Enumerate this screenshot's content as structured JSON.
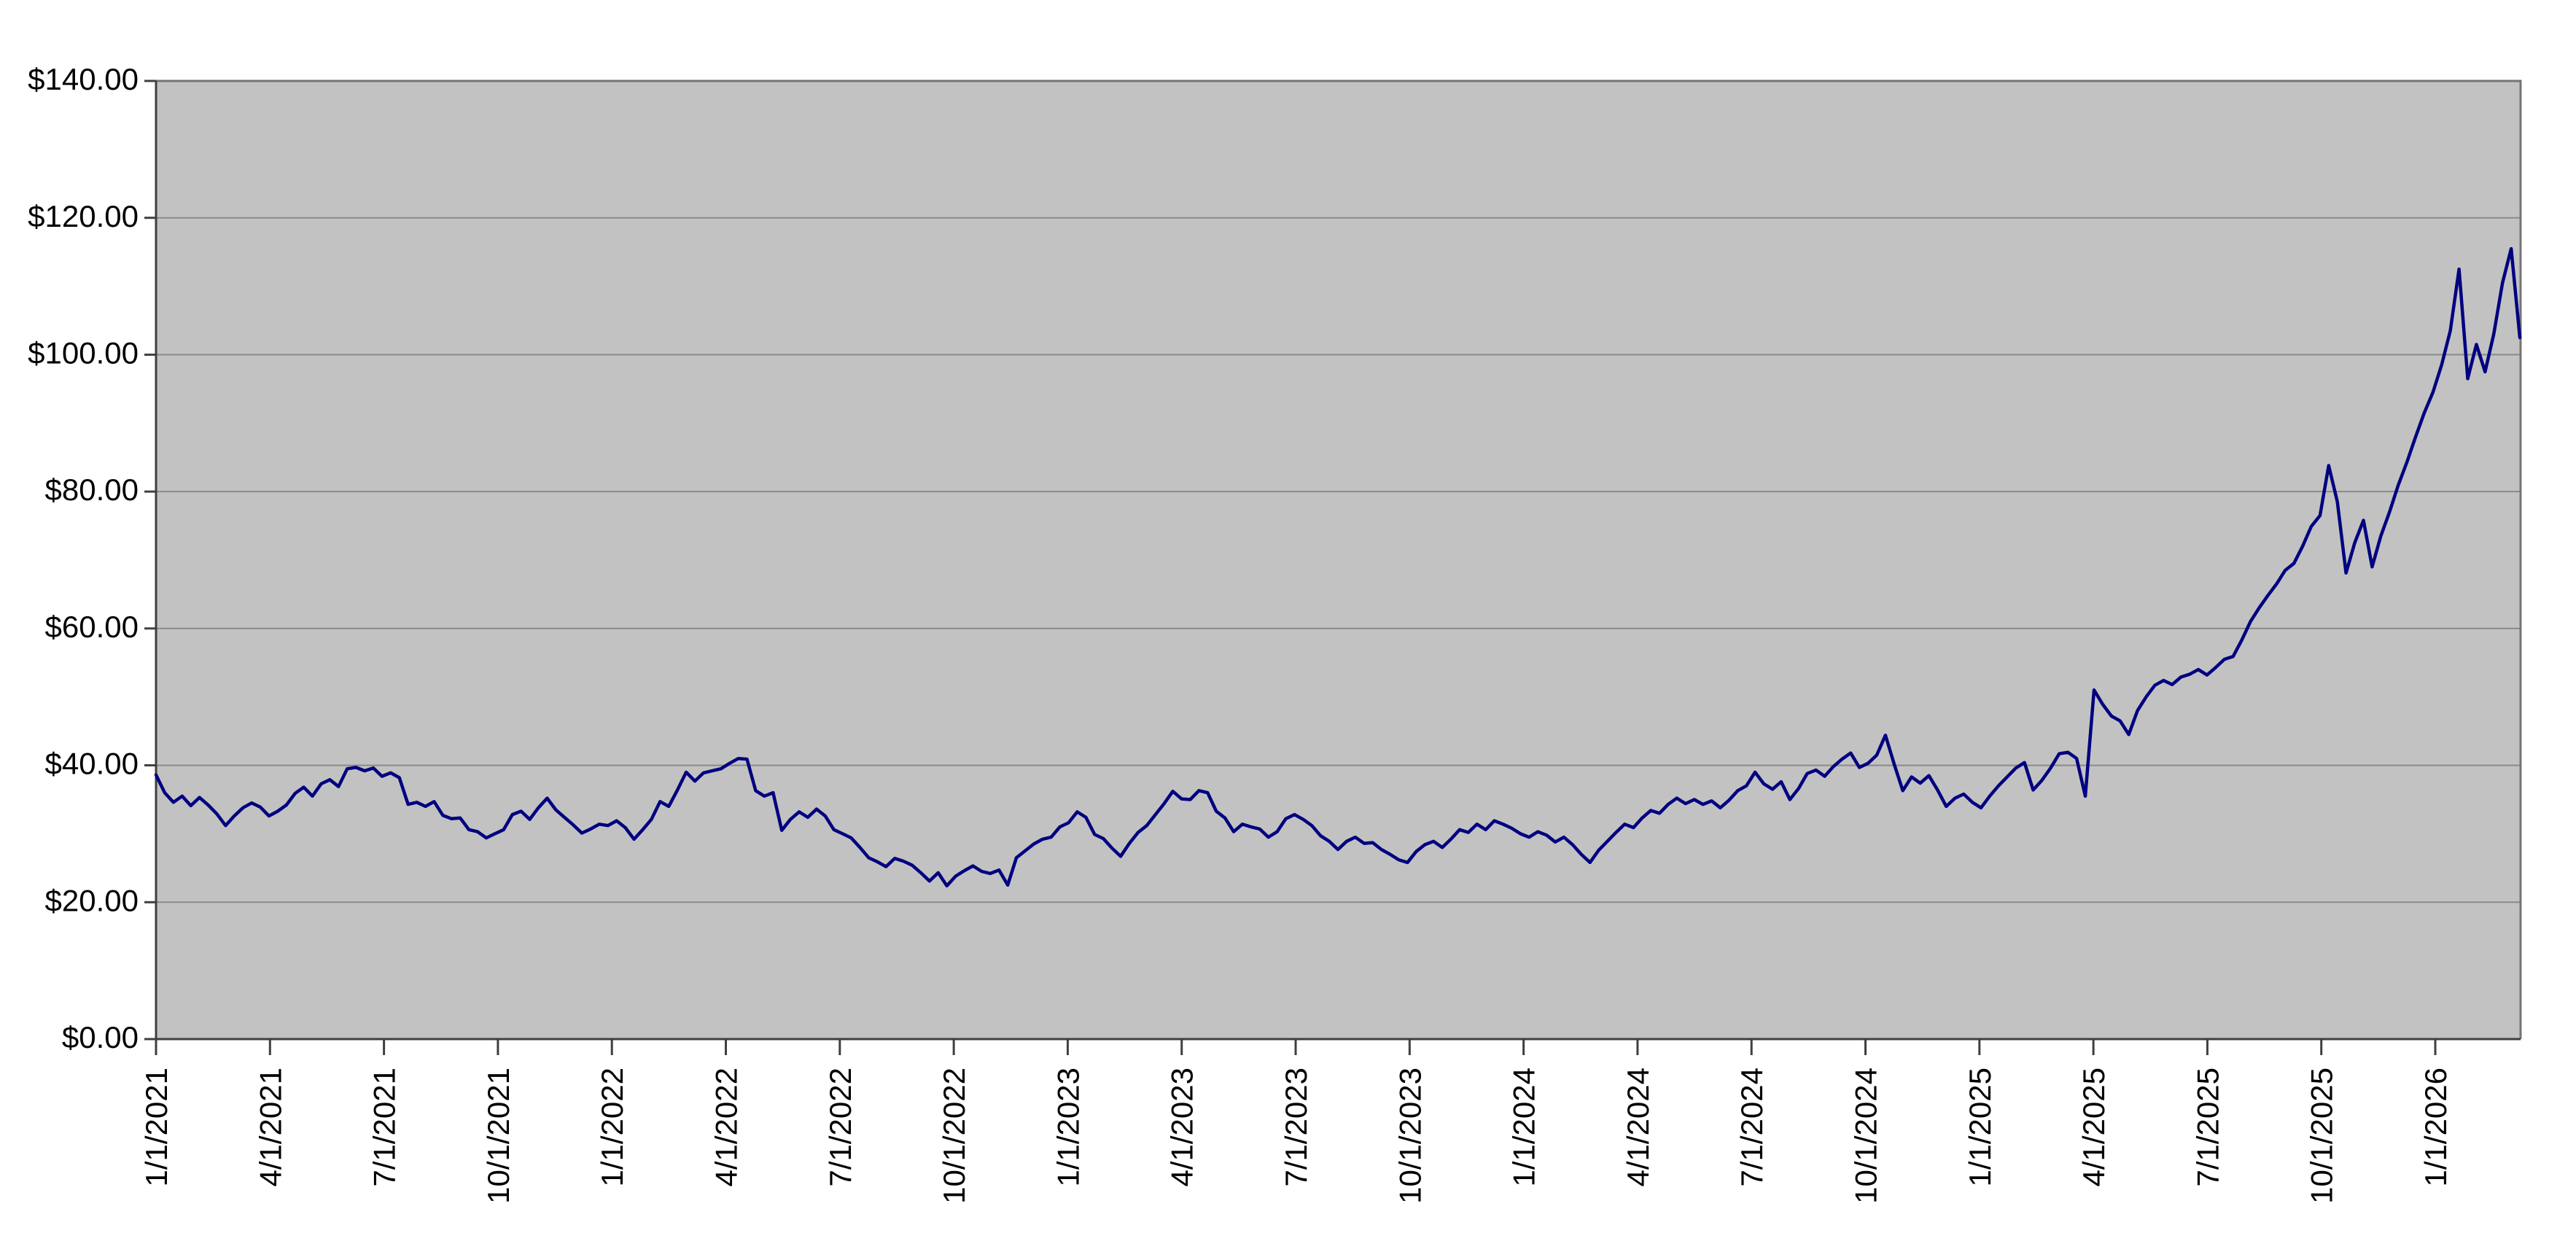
{
  "chart_data": {
    "type": "line",
    "title": "",
    "legend": "none",
    "grid": "horizontal-only",
    "plot_background": "#c2c2c2",
    "outer_background": "#ffffff",
    "gridline_color": "#8a8a8a",
    "frame_color": "#747474",
    "axis_color": "#3f3f3f",
    "tick_color": "#3f3f3f",
    "label_color": "#000000",
    "y_axis": {
      "min": 0,
      "max": 140,
      "tick_step": 20,
      "format": "currency",
      "tick_labels": [
        "$0.00",
        "$20.00",
        "$40.00",
        "$60.00",
        "$80.00",
        "$100.00",
        "$120.00",
        "$140.00"
      ]
    },
    "x_axis": {
      "start_date": "1/1/2021",
      "end_date": "3/19/2026",
      "tick_interval": "quarterly",
      "tick_labels": [
        "1/1/2021",
        "4/1/2021",
        "7/1/2021",
        "10/1/2021",
        "1/1/2022",
        "4/1/2022",
        "7/1/2022",
        "10/1/2022",
        "1/1/2023",
        "4/1/2023",
        "7/1/2023",
        "10/1/2023",
        "1/1/2024",
        "4/1/2024",
        "7/1/2024",
        "10/1/2024",
        "1/1/2025",
        "4/1/2025",
        "7/1/2025",
        "10/1/2025",
        "1/1/2026"
      ],
      "label_rotation_deg": -90
    },
    "series": [
      {
        "name": "price",
        "color": "#000080",
        "stroke_width": 4.5,
        "interval_days": 7,
        "values": [
          38.6,
          36.0,
          34.6,
          35.5,
          34.1,
          35.3,
          34.2,
          32.9,
          31.2,
          32.6,
          33.8,
          34.5,
          33.9,
          32.6,
          33.3,
          34.2,
          35.9,
          36.8,
          35.5,
          37.3,
          37.9,
          36.9,
          39.5,
          39.7,
          39.2,
          39.6,
          38.4,
          38.9,
          38.2,
          34.3,
          34.6,
          34.0,
          34.7,
          32.7,
          32.2,
          32.3,
          30.6,
          30.3,
          29.4,
          30.0,
          30.6,
          32.8,
          33.3,
          32.1,
          33.8,
          35.2,
          33.5,
          32.4,
          31.3,
          30.1,
          30.7,
          31.4,
          31.2,
          31.9,
          30.9,
          29.2,
          30.6,
          32.1,
          34.7,
          34.0,
          36.4,
          39.0,
          37.7,
          38.9,
          39.2,
          39.5,
          40.3,
          41.0,
          40.9,
          36.3,
          35.5,
          36.0,
          30.5,
          32.1,
          33.2,
          32.4,
          33.6,
          32.6,
          30.6,
          30.0,
          29.4,
          28.0,
          26.5,
          25.9,
          25.2,
          26.4,
          26.0,
          25.4,
          24.3,
          23.1,
          24.3,
          22.4,
          23.8,
          24.6,
          25.3,
          24.5,
          24.2,
          24.7,
          22.5,
          26.5,
          27.5,
          28.5,
          29.2,
          29.5,
          31.0,
          31.6,
          33.2,
          32.4,
          29.9,
          29.3,
          27.9,
          26.7,
          28.6,
          30.2,
          31.2,
          32.8,
          34.4,
          36.2,
          35.1,
          35.0,
          36.3,
          36.0,
          33.3,
          32.3,
          30.3,
          31.4,
          31.0,
          30.7,
          29.5,
          30.3,
          32.2,
          32.8,
          32.1,
          31.2,
          29.7,
          28.9,
          27.7,
          28.9,
          29.5,
          28.6,
          28.7,
          27.7,
          27.0,
          26.2,
          25.8,
          27.4,
          28.4,
          28.9,
          28.0,
          29.2,
          30.6,
          30.2,
          31.4,
          30.6,
          31.9,
          31.4,
          30.8,
          30.0,
          29.5,
          30.3,
          29.8,
          28.8,
          29.5,
          28.4,
          27.0,
          25.8,
          27.6,
          28.9,
          30.2,
          31.4,
          30.9,
          32.3,
          33.4,
          33.0,
          34.3,
          35.2,
          34.4,
          35.0,
          34.3,
          34.8,
          33.8,
          34.9,
          36.3,
          37.0,
          39.0,
          37.3,
          36.5,
          37.6,
          35.0,
          36.6,
          38.8,
          39.3,
          38.4,
          39.8,
          40.9,
          41.8,
          39.7,
          40.3,
          41.5,
          44.4,
          40.2,
          36.3,
          38.3,
          37.4,
          38.5,
          36.4,
          34.0,
          35.2,
          35.8,
          34.6,
          33.8,
          35.5,
          37.0,
          38.3,
          39.6,
          40.4,
          36.4,
          37.8,
          39.6,
          41.7,
          41.9,
          41.0,
          35.5,
          51.0,
          48.9,
          47.2,
          46.5,
          44.5,
          48.0,
          50.0,
          51.7,
          52.4,
          51.8,
          52.9,
          53.3,
          54.0,
          53.2,
          54.3,
          55.5,
          55.9,
          58.3,
          61.0,
          63.0,
          64.8,
          66.5,
          68.5,
          69.5,
          72.0,
          74.9,
          76.5,
          83.8,
          78.5,
          68.1,
          72.5,
          75.8,
          69.0,
          73.5,
          77.0,
          80.9,
          84.3,
          88.0,
          91.5,
          94.5,
          98.5,
          103.5,
          112.5,
          96.5,
          101.5,
          97.5,
          103.0,
          110.5,
          115.5,
          102.5
        ]
      }
    ]
  }
}
